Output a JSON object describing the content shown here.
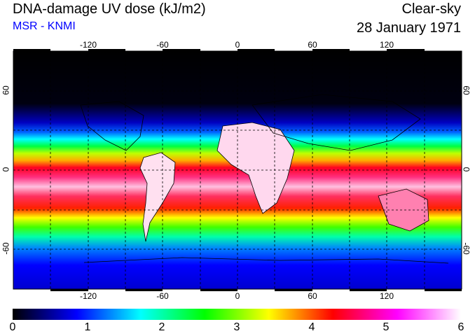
{
  "header": {
    "title": "DNA-damage UV dose (kJ/m2)",
    "subtitle": "MSR - KNMI",
    "condition": "Clear-sky",
    "date": "28 January 1971"
  },
  "map": {
    "lon_ticks": [
      "-120",
      "-60",
      "0",
      "60",
      "120"
    ],
    "lon_values": [
      -120,
      -60,
      0,
      60,
      120
    ],
    "lat_ticks": [
      "60",
      "0",
      "-60"
    ],
    "lat_values": [
      60,
      0,
      -60
    ],
    "lon_range": [
      -180,
      180
    ],
    "lat_range": [
      -90,
      90
    ]
  },
  "colorbar": {
    "labels": [
      "0",
      "1",
      "2",
      "3",
      "4",
      "5",
      "6"
    ],
    "min": 0,
    "max": 6,
    "colors": [
      "#000000",
      "#0000ff",
      "#00ffff",
      "#00ff00",
      "#ffff00",
      "#ff0000",
      "#ff00ff",
      "#ffffff"
    ]
  }
}
